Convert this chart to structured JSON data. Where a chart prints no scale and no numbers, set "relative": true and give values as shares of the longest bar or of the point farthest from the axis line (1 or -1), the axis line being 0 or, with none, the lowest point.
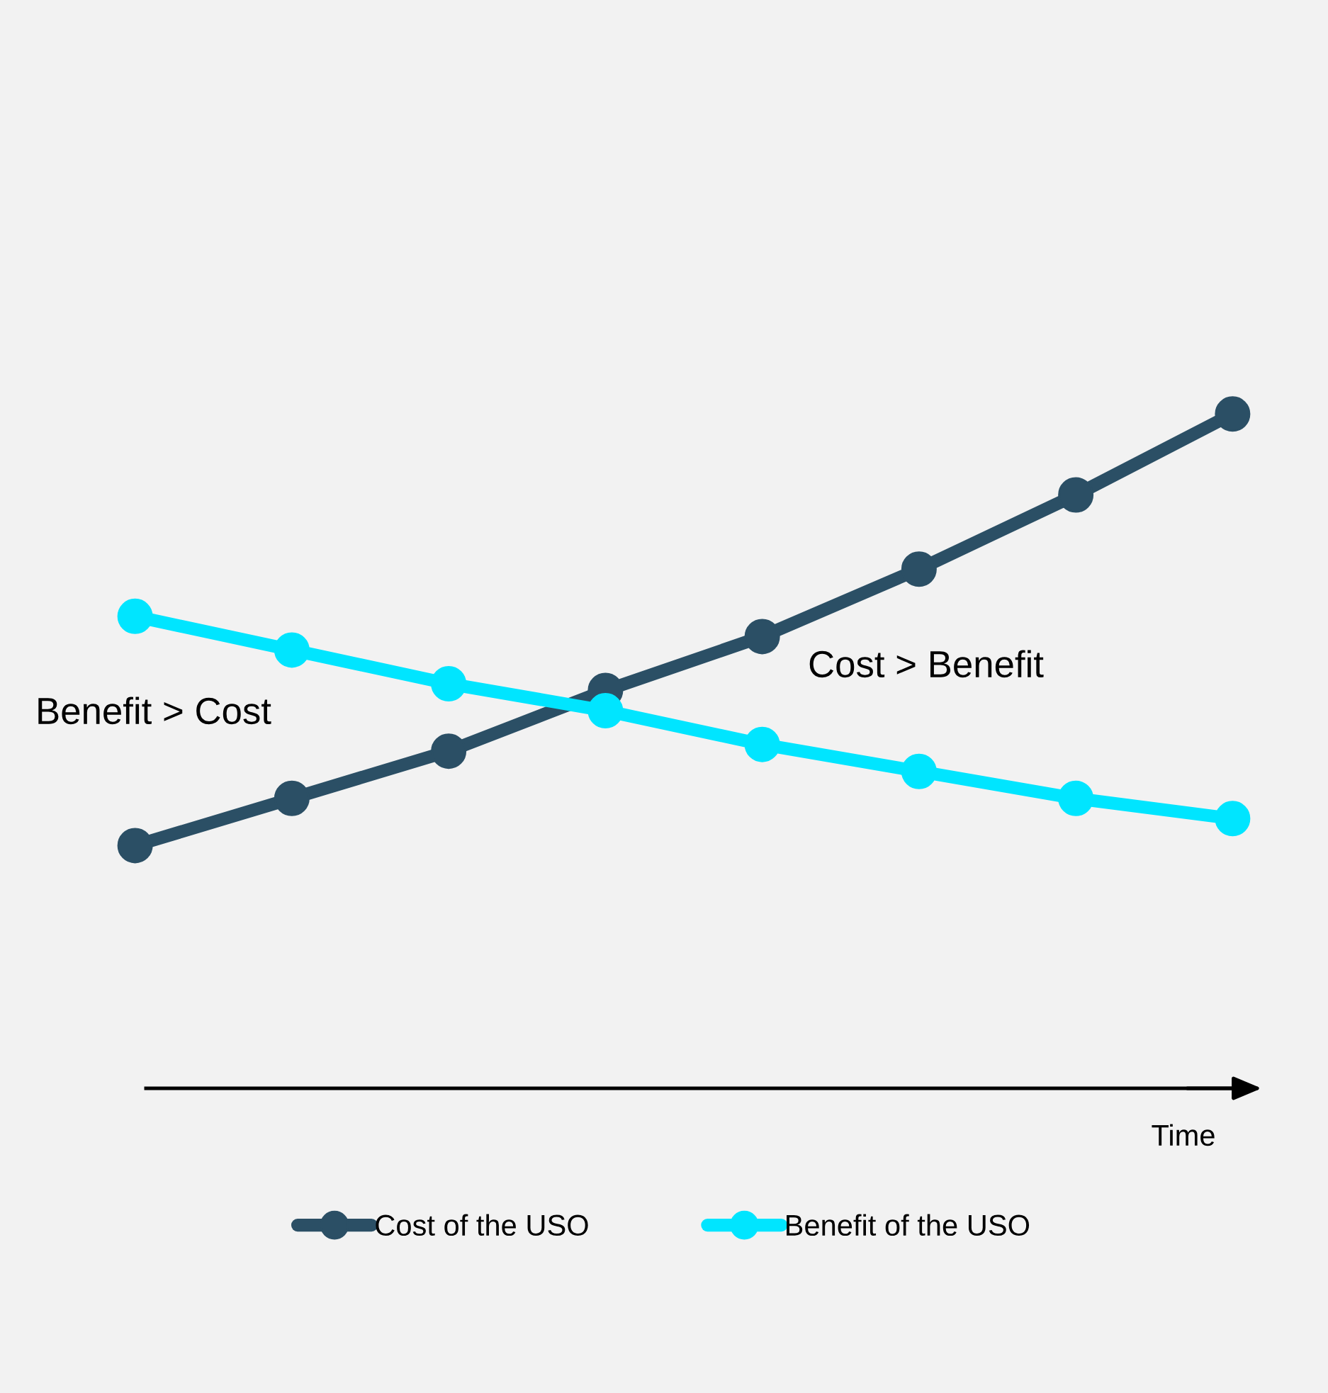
{
  "chart_data": {
    "type": "line",
    "relative": true,
    "xlabel": "Time",
    "categories": [
      null,
      null,
      null,
      null,
      null,
      null,
      null,
      null
    ],
    "series": [
      {
        "name": "Cost of the USO",
        "color": "#2b4f65",
        "values": [
          0.36,
          0.43,
          0.5,
          0.59,
          0.67,
          0.77,
          0.88,
          1.0
        ]
      },
      {
        "name": "Benefit of the USO",
        "color": "#00e5ff",
        "values": [
          0.7,
          0.65,
          0.6,
          0.56,
          0.51,
          0.47,
          0.43,
          0.4
        ]
      }
    ],
    "annotations": [
      "Benefit > Cost",
      "Cost > Benefit"
    ],
    "marker": "circle",
    "line_style": "solid",
    "legend": "bottom",
    "grid": false
  }
}
